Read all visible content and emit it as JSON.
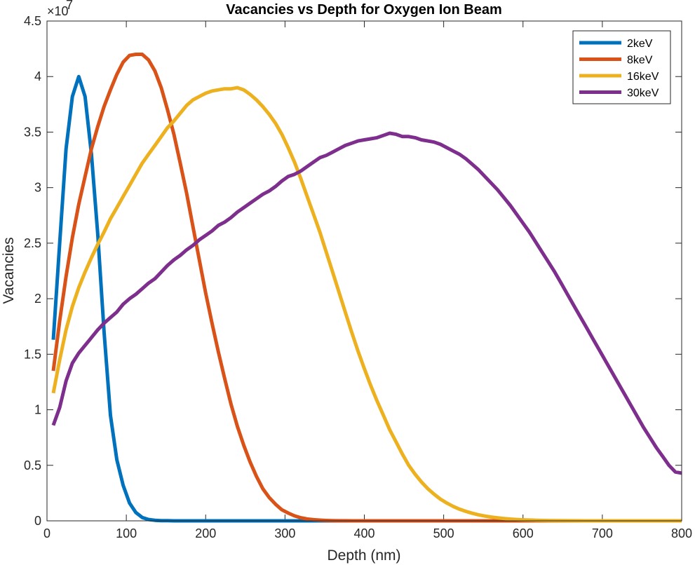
{
  "chart_data": {
    "type": "line",
    "title": "Vacancies vs Depth for Oxygen Ion Beam",
    "xlabel": "Depth (nm)",
    "ylabel": "Vacancies",
    "xlim": [
      0,
      800
    ],
    "ylim": [
      0,
      45000000
    ],
    "y_exponent_base": "×10",
    "y_exponent_power": "7",
    "xticks": [
      0,
      100,
      200,
      300,
      400,
      500,
      600,
      700,
      800
    ],
    "xtick_labels": [
      "0",
      "100",
      "200",
      "300",
      "400",
      "500",
      "600",
      "700",
      "800"
    ],
    "yticks": [
      0,
      5000000,
      10000000,
      15000000,
      20000000,
      25000000,
      30000000,
      35000000,
      40000000,
      45000000
    ],
    "ytick_labels": [
      "0",
      "0.5",
      "1",
      "1.5",
      "2",
      "2.5",
      "3",
      "3.5",
      "4",
      "4.5"
    ],
    "grid": false,
    "legend_position": "top-right",
    "series": [
      {
        "name": "2keV",
        "color": "#0072BD",
        "x": [
          8,
          16,
          24,
          32,
          40,
          48,
          56,
          64,
          72,
          80,
          88,
          96,
          104,
          112,
          120,
          128,
          136,
          144,
          152,
          160,
          200,
          300,
          400,
          500,
          600,
          700,
          800
        ],
        "y": [
          16300000,
          25000000,
          33500000,
          38200000,
          40000000,
          38200000,
          33000000,
          25800000,
          17000000,
          9500000,
          5500000,
          3200000,
          1600000,
          750000,
          300000,
          120000,
          50000,
          20000,
          10000,
          0,
          0,
          0,
          0,
          0,
          0,
          0,
          0
        ]
      },
      {
        "name": "8keV",
        "color": "#D95319",
        "x": [
          8,
          16,
          24,
          32,
          40,
          48,
          56,
          64,
          72,
          80,
          88,
          96,
          104,
          112,
          120,
          128,
          136,
          144,
          152,
          160,
          168,
          176,
          184,
          192,
          200,
          208,
          216,
          224,
          232,
          240,
          248,
          256,
          264,
          272,
          280,
          288,
          296,
          304,
          312,
          320,
          328,
          336,
          344,
          352,
          360,
          368,
          376,
          384,
          392,
          400,
          450,
          500,
          600,
          700,
          800
        ],
        "y": [
          13500000,
          18000000,
          22000000,
          25500000,
          28500000,
          31000000,
          33500000,
          35500000,
          37300000,
          38800000,
          40200000,
          41300000,
          41900000,
          42000000,
          42000000,
          41500000,
          40500000,
          39000000,
          37000000,
          34800000,
          32200000,
          29500000,
          26500000,
          23500000,
          20500000,
          17800000,
          15200000,
          12800000,
          10500000,
          8500000,
          6800000,
          5300000,
          4000000,
          2900000,
          2100000,
          1500000,
          1000000,
          700000,
          450000,
          280000,
          170000,
          100000,
          60000,
          30000,
          15000,
          8000,
          4000,
          2000,
          1000,
          0,
          0,
          0,
          0,
          0,
          0
        ]
      },
      {
        "name": "16keV",
        "color": "#EDB120",
        "x": [
          8,
          16,
          24,
          32,
          40,
          48,
          56,
          64,
          72,
          80,
          88,
          96,
          104,
          112,
          120,
          128,
          136,
          144,
          152,
          160,
          168,
          176,
          184,
          192,
          200,
          208,
          216,
          224,
          232,
          240,
          248,
          256,
          264,
          272,
          280,
          288,
          296,
          304,
          312,
          320,
          328,
          336,
          344,
          352,
          360,
          368,
          376,
          384,
          392,
          400,
          408,
          416,
          424,
          432,
          440,
          448,
          456,
          464,
          472,
          480,
          488,
          496,
          504,
          512,
          520,
          528,
          536,
          544,
          552,
          560,
          568,
          576,
          584,
          592,
          600,
          616,
          632,
          648,
          664,
          680,
          700,
          750,
          800
        ],
        "y": [
          11500000,
          14500000,
          17200000,
          19300000,
          21000000,
          22400000,
          23700000,
          24900000,
          26000000,
          27200000,
          28200000,
          29200000,
          30200000,
          31200000,
          32200000,
          33000000,
          33800000,
          34600000,
          35400000,
          36000000,
          36700000,
          37400000,
          37900000,
          38200000,
          38500000,
          38700000,
          38800000,
          38900000,
          38900000,
          39000000,
          38800000,
          38400000,
          37900000,
          37300000,
          36600000,
          35800000,
          34800000,
          33600000,
          32300000,
          30800000,
          29200000,
          27600000,
          26000000,
          24200000,
          22400000,
          20600000,
          18800000,
          17000000,
          15300000,
          13700000,
          12200000,
          10800000,
          9500000,
          8200000,
          7100000,
          6000000,
          5000000,
          4200000,
          3500000,
          2900000,
          2400000,
          1950000,
          1600000,
          1300000,
          1050000,
          850000,
          680000,
          540000,
          430000,
          340000,
          270000,
          210000,
          160000,
          120000,
          90000,
          50000,
          25000,
          12000,
          6000,
          3000,
          1000,
          0,
          0
        ]
      },
      {
        "name": "30keV",
        "color": "#7E2F8E",
        "x": [
          8,
          16,
          24,
          32,
          40,
          48,
          56,
          64,
          72,
          80,
          88,
          96,
          104,
          112,
          120,
          128,
          136,
          144,
          152,
          160,
          168,
          176,
          184,
          192,
          200,
          208,
          216,
          224,
          232,
          240,
          248,
          256,
          264,
          272,
          280,
          288,
          296,
          304,
          312,
          320,
          328,
          336,
          344,
          352,
          360,
          368,
          376,
          384,
          392,
          400,
          408,
          416,
          424,
          432,
          440,
          448,
          456,
          464,
          472,
          480,
          488,
          496,
          504,
          512,
          520,
          528,
          536,
          544,
          552,
          560,
          568,
          576,
          584,
          592,
          600,
          608,
          616,
          624,
          632,
          640,
          648,
          656,
          664,
          672,
          680,
          688,
          696,
          704,
          712,
          720,
          728,
          736,
          744,
          752,
          760,
          768,
          776,
          784,
          792,
          800
        ],
        "y": [
          8600000,
          10200000,
          12600000,
          14200000,
          15100000,
          15800000,
          16500000,
          17200000,
          17800000,
          18300000,
          18800000,
          19500000,
          20000000,
          20400000,
          20900000,
          21400000,
          21800000,
          22400000,
          23000000,
          23500000,
          23900000,
          24400000,
          24800000,
          25300000,
          25700000,
          26100000,
          26600000,
          26900000,
          27300000,
          27800000,
          28200000,
          28600000,
          29000000,
          29400000,
          29700000,
          30100000,
          30600000,
          31000000,
          31200000,
          31500000,
          31900000,
          32300000,
          32700000,
          32900000,
          33200000,
          33500000,
          33800000,
          34000000,
          34200000,
          34300000,
          34400000,
          34500000,
          34700000,
          34900000,
          34800000,
          34600000,
          34600000,
          34500000,
          34300000,
          34200000,
          34100000,
          33900000,
          33600000,
          33300000,
          33000000,
          32600000,
          32100000,
          31600000,
          31000000,
          30400000,
          29800000,
          29100000,
          28400000,
          27600000,
          26800000,
          26000000,
          25100000,
          24200000,
          23300000,
          22400000,
          21400000,
          20400000,
          19400000,
          18400000,
          17400000,
          16400000,
          15400000,
          14400000,
          13400000,
          12400000,
          11400000,
          10400000,
          9400000,
          8400000,
          7500000,
          6600000,
          5800000,
          5000000,
          4400000,
          4300000
        ]
      }
    ]
  }
}
